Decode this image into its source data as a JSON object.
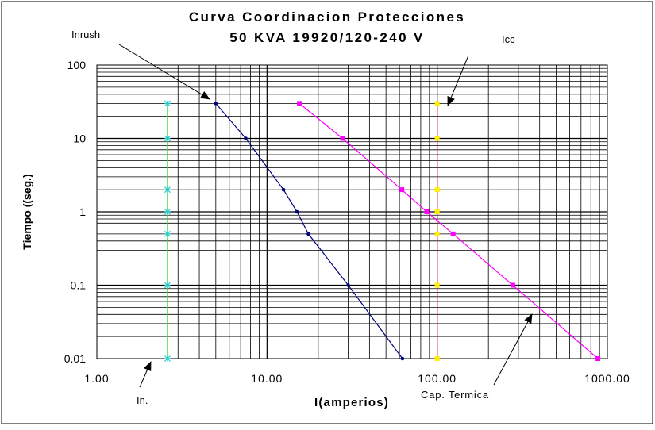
{
  "chart_data": {
    "type": "line",
    "title": [
      "Curva Coordinacion Protecciones",
      "50 KVA 19920/120-240 V"
    ],
    "xlabel": "I(amperios)",
    "ylabel": "Tiempo ((seg.)",
    "x_scale": "log",
    "y_scale": "log",
    "xlim": [
      1,
      1000
    ],
    "ylim": [
      0.01,
      100
    ],
    "x_ticks": [
      1,
      10,
      100,
      1000
    ],
    "x_tick_labels": [
      "1.00",
      "10.00",
      "100.00",
      "1000.00"
    ],
    "y_ticks": [
      100,
      10,
      1,
      0.1,
      0.01
    ],
    "y_tick_labels": [
      "100",
      "10",
      "1",
      "0.1",
      "0.01"
    ],
    "grid": true,
    "series": [
      {
        "color": "#33dd33",
        "marker_color": "#22cccc",
        "marker": "star",
        "points": [
          [
            2.6,
            30
          ],
          [
            2.6,
            10
          ],
          [
            2.6,
            2
          ],
          [
            2.6,
            1
          ],
          [
            2.6,
            0.5
          ],
          [
            2.6,
            0.1
          ],
          [
            2.6,
            0.01
          ]
        ]
      },
      {
        "color": "#000080",
        "marker_color": "#000080",
        "marker": "circle",
        "points": [
          [
            5,
            30
          ],
          [
            7.5,
            10
          ],
          [
            12.5,
            2
          ],
          [
            15,
            1
          ],
          [
            17.5,
            0.5
          ],
          [
            30,
            0.1
          ],
          [
            62.5,
            0.01
          ]
        ]
      },
      {
        "color": "#ff00ff",
        "marker_color": "#ff00ff",
        "marker": "square",
        "points": [
          [
            15.5,
            30
          ],
          [
            27.8,
            10
          ],
          [
            62,
            2
          ],
          [
            86.8,
            1
          ],
          [
            124,
            0.5
          ],
          [
            278,
            0.1
          ],
          [
            880,
            0.01
          ]
        ]
      },
      {
        "color": "#ff3333",
        "marker_color": "#ffee00",
        "marker": "square",
        "points": [
          [
            100,
            30
          ],
          [
            100,
            10
          ],
          [
            100,
            2
          ],
          [
            100,
            1
          ],
          [
            100,
            0.5
          ],
          [
            100,
            0.1
          ],
          [
            100,
            0.01
          ]
        ]
      }
    ],
    "annotations": [
      {
        "text": "Inrush",
        "x": 5,
        "y": 30
      },
      {
        "text": "Icc",
        "x": 100,
        "y": 30
      },
      {
        "text": "In.",
        "x": 2.6,
        "y": 0.01
      },
      {
        "text": "Cap. Termica",
        "x": 300,
        "y": 0.05
      }
    ]
  }
}
